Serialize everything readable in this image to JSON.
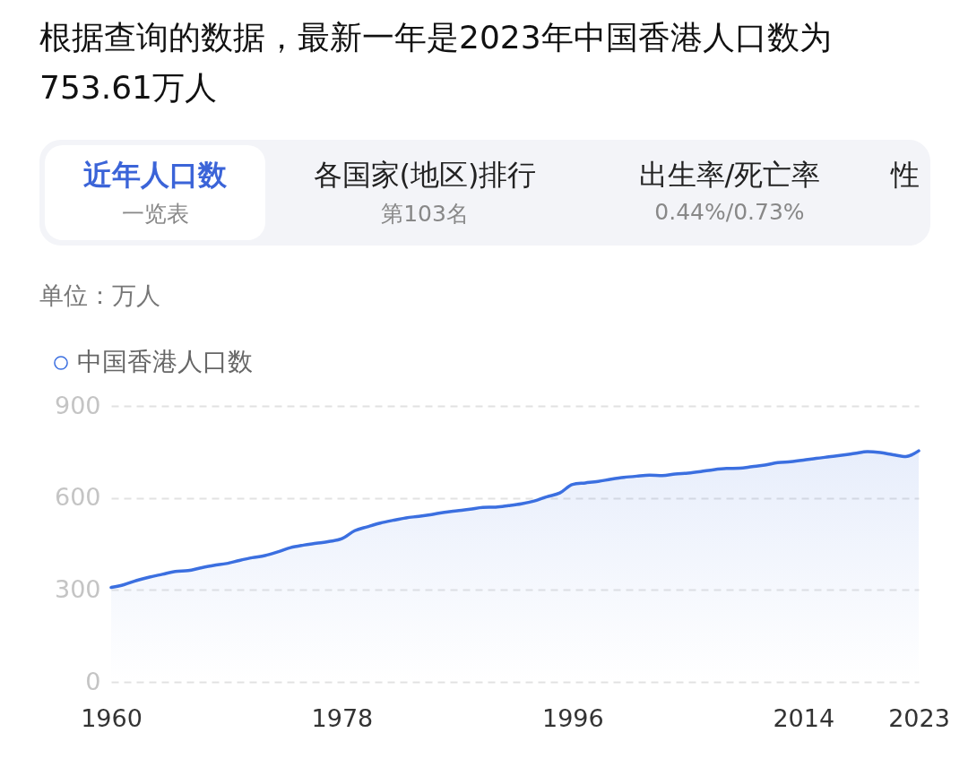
{
  "chart_data": {
    "type": "area",
    "title": "根据查询的数据，最新一年是2023年中国香港人口数为 753.61万人",
    "annotations": [
      "近年人口数",
      "一览表",
      "各国家(地区)排行",
      "第103名",
      "出生率/死亡率",
      "0.44%/0.73%",
      "性"
    ],
    "ylabel": "单位：万人",
    "x": [
      1960,
      1961,
      1962,
      1963,
      1964,
      1965,
      1966,
      1967,
      1968,
      1969,
      1970,
      1971,
      1972,
      1973,
      1974,
      1975,
      1976,
      1977,
      1978,
      1979,
      1980,
      1981,
      1982,
      1983,
      1984,
      1985,
      1986,
      1987,
      1988,
      1989,
      1990,
      1991,
      1992,
      1993,
      1994,
      1995,
      1996,
      1997,
      1998,
      1999,
      2000,
      2001,
      2002,
      2003,
      2004,
      2005,
      2006,
      2007,
      2008,
      2009,
      2010,
      2011,
      2012,
      2013,
      2014,
      2015,
      2016,
      2017,
      2018,
      2019,
      2020,
      2021,
      2022,
      2023
    ],
    "series": [
      {
        "name": "中国香港人口数",
        "color": "#3b6fe0",
        "values": [
          308,
          317,
          331,
          342,
          351,
          360,
          363,
          372,
          380,
          386,
          396,
          405,
          412,
          424,
          438,
          446,
          452,
          458,
          467,
          493,
          506,
          518,
          527,
          535,
          540,
          546,
          553,
          558,
          563,
          569,
          570,
          575,
          581,
          590,
          604,
          616,
          644,
          649,
          654,
          661,
          667,
          671,
          674,
          673,
          678,
          681,
          686,
          692,
          696,
          697,
          702,
          707,
          715,
          718,
          723,
          729,
          734,
          739,
          745,
          751,
          748,
          741,
          735,
          753.61
        ]
      }
    ],
    "xlim": [
      1960,
      2023
    ],
    "xticks": [
      1960,
      1978,
      1996,
      2014,
      2023
    ],
    "ylim": [
      0,
      900
    ],
    "yticks": [
      0,
      300,
      600,
      900
    ],
    "grid": "y",
    "legend": "top left"
  }
}
